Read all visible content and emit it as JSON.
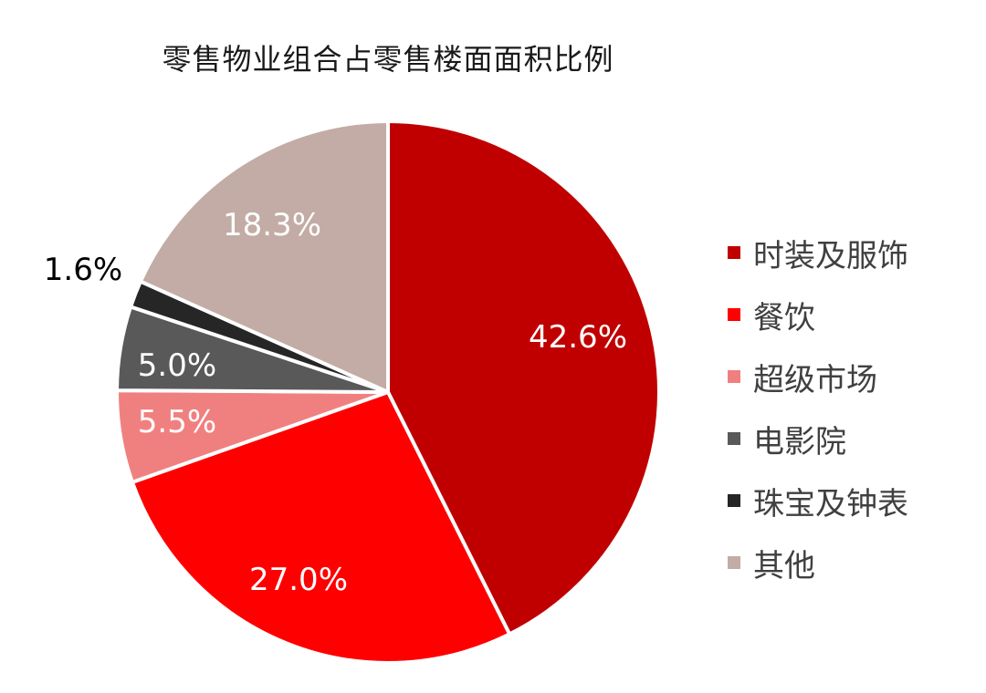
{
  "chart_data": {
    "type": "pie",
    "title": "零售物业组合占零售楼面面积比例",
    "start": "12 o'clock",
    "direction": "clockwise",
    "slices": [
      {
        "label": "时装及服饰",
        "value": 42.6,
        "display": "42.6%",
        "color": "#C00000",
        "label_color": "#ffffff"
      },
      {
        "label": "餐饮",
        "value": 27.0,
        "display": "27.0%",
        "color": "#FF0000",
        "label_color": "#ffffff"
      },
      {
        "label": "超级市场",
        "value": 5.5,
        "display": "5.5%",
        "color": "#F08080",
        "label_color": "#ffffff"
      },
      {
        "label": "电影院",
        "value": 5.0,
        "display": "5.0%",
        "color": "#595959",
        "label_color": "#ffffff"
      },
      {
        "label": "珠宝及钟表",
        "value": 1.6,
        "display": "1.6%",
        "color": "#262626",
        "label_color": "#000000",
        "label_position": "outside"
      },
      {
        "label": "其他",
        "value": 18.3,
        "display": "18.3%",
        "color": "#C2ACA5",
        "label_color": "#ffffff"
      }
    ],
    "legend": "right"
  }
}
